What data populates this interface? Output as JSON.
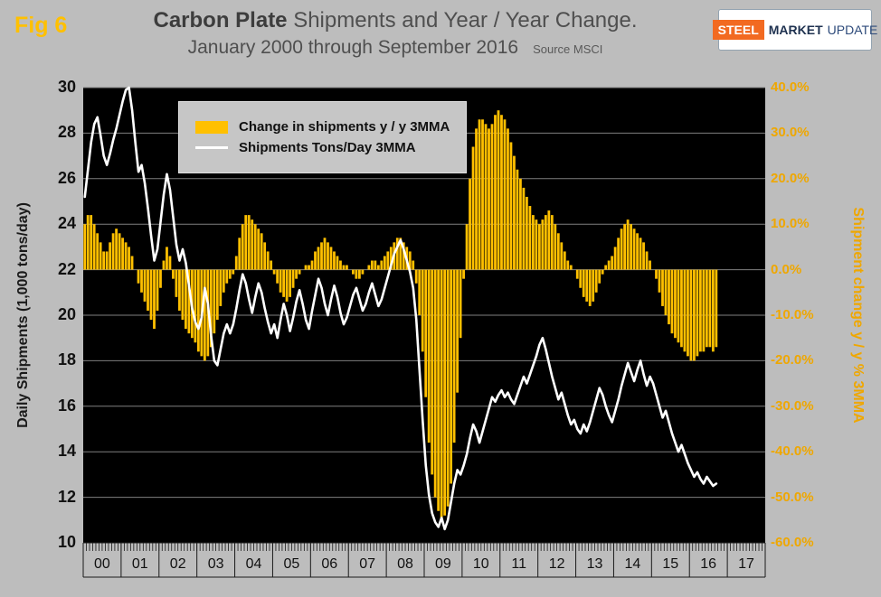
{
  "figure": {
    "label": "Fig 6"
  },
  "header": {
    "title_bold": "Carbon Plate",
    "title_rest": " Shipments and Year / Year Change.",
    "subtitle": "January 2000 through September 2016",
    "source": "Source MSCI",
    "logo": {
      "steel": "STEEL",
      "market": "MARKET",
      "update": "UPDATE"
    }
  },
  "axes": {
    "left_title": "Daily Shipments (1,000 tons/day)",
    "right_title": "Shipment change y / y % 3MMA",
    "left_ticks": [
      30,
      28,
      26,
      24,
      22,
      20,
      18,
      16,
      14,
      12,
      10
    ],
    "right_ticks": [
      "40.0%",
      "30.0%",
      "20.0%",
      "10.0%",
      "0.0%",
      "-10.0%",
      "-20.0%",
      "-30.0%",
      "-40.0%",
      "-50.0%",
      "-60.0%"
    ],
    "year_labels": [
      "00",
      "01",
      "02",
      "03",
      "04",
      "05",
      "06",
      "07",
      "08",
      "09",
      "10",
      "11",
      "12",
      "13",
      "14",
      "15",
      "16",
      "17"
    ]
  },
  "legend": {
    "bar_label": "Change in shipments y / y 3MMA",
    "line_label": "Shipments Tons/Day 3MMA"
  },
  "colors": {
    "bar": "#FFC000",
    "line": "#FFFFFF",
    "plot_bg": "#000000",
    "page_bg": "#BDBDBD",
    "grid": "#7F7F7F",
    "right_axis_text": "#EFA700",
    "fig_label": "#FFC000"
  },
  "chart_data": {
    "type": "combo",
    "x_range": "monthly, January 2000 through September 2016",
    "left_axis": {
      "min": 10,
      "max": 30,
      "step": 2,
      "unit": "1,000 tons/day"
    },
    "right_axis": {
      "min": -60,
      "max": 40,
      "step": 10,
      "unit": "percent"
    },
    "x_axis": {
      "start_year": 2000,
      "last_year_cell": 2017,
      "months_shown": 201,
      "month_slots": 216
    },
    "series": [
      {
        "name": "Change in shipments y / y 3MMA",
        "type": "bar",
        "axis": "right",
        "unit": "%",
        "values": [
          10,
          12,
          12,
          10,
          8,
          6,
          4,
          4,
          6,
          8,
          9,
          8,
          7,
          6,
          5,
          3,
          0,
          -3,
          -5,
          -7,
          -9,
          -11,
          -13,
          -9,
          -4,
          2,
          5,
          3,
          -2,
          -6,
          -9,
          -11,
          -13,
          -14,
          -15,
          -16,
          -18,
          -19,
          -20,
          -19,
          -17,
          -14,
          -11,
          -8,
          -5,
          -3,
          -2,
          -1,
          3,
          7,
          10,
          12,
          12,
          11,
          10,
          9,
          8,
          6,
          4,
          2,
          -1,
          -3,
          -5,
          -6,
          -7,
          -6,
          -4,
          -2,
          -1,
          0,
          1,
          1,
          2,
          4,
          5,
          6,
          7,
          6,
          5,
          4,
          3,
          2,
          1,
          1,
          0,
          -1,
          -2,
          -2,
          -1,
          0,
          1,
          2,
          2,
          1,
          2,
          3,
          4,
          5,
          6,
          7,
          7,
          6,
          5,
          4,
          2,
          -3,
          -10,
          -18,
          -28,
          -38,
          -45,
          -50,
          -53,
          -55,
          -54,
          -52,
          -47,
          -38,
          -27,
          -15,
          -2,
          10,
          20,
          27,
          31,
          33,
          33,
          32,
          31,
          32,
          34,
          35,
          34,
          33,
          31,
          28,
          25,
          22,
          20,
          18,
          16,
          14,
          12,
          11,
          10,
          11,
          12,
          13,
          12,
          10,
          8,
          6,
          4,
          2,
          1,
          0,
          -2,
          -4,
          -6,
          -7,
          -8,
          -7,
          -5,
          -3,
          -1,
          1,
          2,
          3,
          5,
          7,
          9,
          10,
          11,
          10,
          9,
          8,
          7,
          6,
          4,
          2,
          0,
          -2,
          -5,
          -8,
          -10,
          -12,
          -14,
          -15,
          -16,
          -17,
          -18,
          -19,
          -20,
          -20,
          -19,
          -18,
          -18,
          -17,
          -17,
          -18,
          -17
        ]
      },
      {
        "name": "Shipments Tons/Day 3MMA",
        "type": "line",
        "axis": "left",
        "unit": "1,000 tons/day",
        "values": [
          25.2,
          26.4,
          27.6,
          28.4,
          28.7,
          27.9,
          27.0,
          26.6,
          27.1,
          27.7,
          28.2,
          28.8,
          29.4,
          29.9,
          30.0,
          29.0,
          27.6,
          26.3,
          26.6,
          25.8,
          24.7,
          23.5,
          22.4,
          22.9,
          24.1,
          25.3,
          26.2,
          25.5,
          24.3,
          23.1,
          22.4,
          22.9,
          22.3,
          21.3,
          20.3,
          19.7,
          19.4,
          19.9,
          21.2,
          20.5,
          19.1,
          18.0,
          17.8,
          18.5,
          19.2,
          19.6,
          19.2,
          19.6,
          20.3,
          21.1,
          21.8,
          21.4,
          20.7,
          20.1,
          20.8,
          21.4,
          21.0,
          20.3,
          19.7,
          19.2,
          19.6,
          19.0,
          19.8,
          20.5,
          20.0,
          19.3,
          19.9,
          20.6,
          21.1,
          20.5,
          19.8,
          19.4,
          20.2,
          20.9,
          21.6,
          21.2,
          20.5,
          20.0,
          20.7,
          21.3,
          20.8,
          20.1,
          19.6,
          19.9,
          20.4,
          20.9,
          21.2,
          20.7,
          20.2,
          20.5,
          21.0,
          21.4,
          20.9,
          20.4,
          20.7,
          21.2,
          21.7,
          22.2,
          22.7,
          23.0,
          23.3,
          22.9,
          22.4,
          21.9,
          21.2,
          19.8,
          17.6,
          15.4,
          13.4,
          12.1,
          11.3,
          10.9,
          10.7,
          11.1,
          10.6,
          11.0,
          11.8,
          12.6,
          13.2,
          13.0,
          13.4,
          13.9,
          14.6,
          15.2,
          14.9,
          14.4,
          14.9,
          15.4,
          15.9,
          16.4,
          16.2,
          16.5,
          16.7,
          16.4,
          16.6,
          16.3,
          16.1,
          16.5,
          16.9,
          17.3,
          17.0,
          17.4,
          17.8,
          18.2,
          18.7,
          19.0,
          18.5,
          17.9,
          17.3,
          16.8,
          16.3,
          16.6,
          16.1,
          15.6,
          15.2,
          15.4,
          15.0,
          14.8,
          15.2,
          14.9,
          15.3,
          15.8,
          16.3,
          16.8,
          16.5,
          16.0,
          15.6,
          15.3,
          15.8,
          16.3,
          16.9,
          17.4,
          17.9,
          17.5,
          17.1,
          17.6,
          18.0,
          17.4,
          16.9,
          17.3,
          17.0,
          16.5,
          16.0,
          15.5,
          15.8,
          15.3,
          14.8,
          14.4,
          14.0,
          14.3,
          13.9,
          13.5,
          13.2,
          12.9,
          13.1,
          12.8,
          12.6,
          12.9,
          12.7,
          12.5,
          12.6
        ]
      }
    ]
  }
}
